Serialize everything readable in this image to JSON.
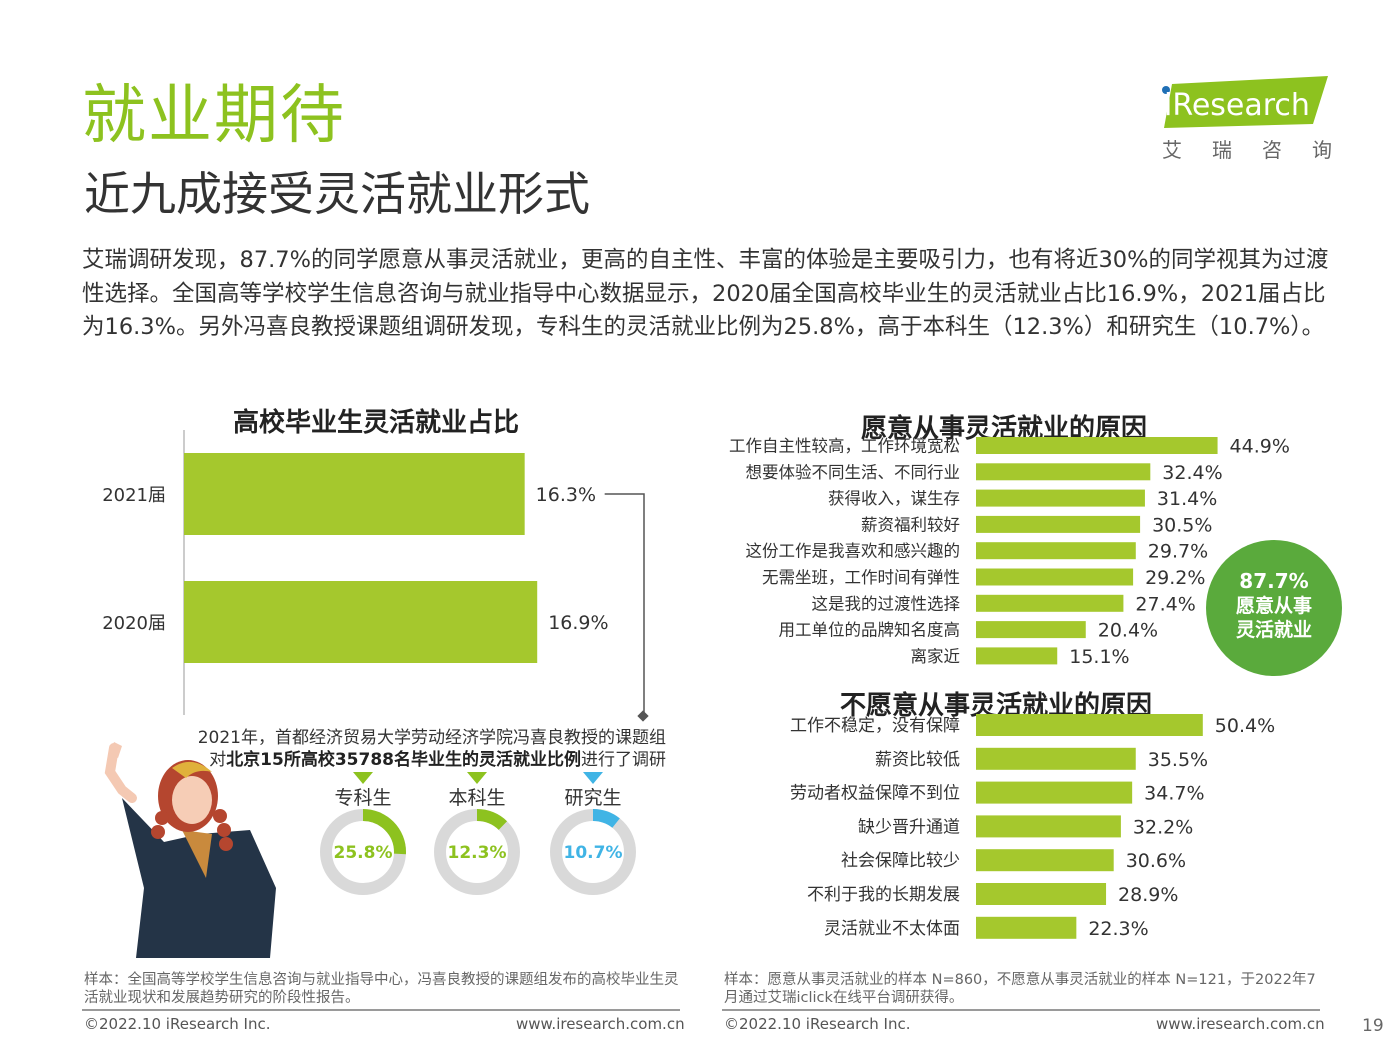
{
  "page": {
    "title": "就业期待",
    "subtitle": "近九成接受灵活就业形式",
    "intro": "艾瑞调研发现，87.7%的同学愿意从事灵活就业，更高的自主性、丰富的体验是主要吸引力，也有将近30%的同学视其为过渡性选择。全国高等学校学生信息咨询与就业指导中心数据显示，2020届全国高校毕业生的灵活就业占比16.9%，2021届占比为16.3%。另外冯喜良教授课题组调研发现，专科生的灵活就业比例为25.8%，高于本科生（12.3%）和研究生（10.7%）。",
    "page_number": "19"
  },
  "logo": {
    "word": "iResearch",
    "chinese": "艾瑞咨询"
  },
  "survey_note": {
    "line1": "2021年，首都经济贸易大学劳动经济学院冯喜良教授的课题组",
    "prefix": "对",
    "bold": "北京15所高校35788名毕业生的灵活就业比例",
    "suffix": "进行了调研"
  },
  "highlight_circle": {
    "value": "87.7%",
    "line1": "愿意从事",
    "line2": "灵活就业"
  },
  "notes": {
    "left": "样本：全国高等学校学生信息咨询与就业指导中心，冯喜良教授的课题组发布的高校毕业生灵活就业现状和发展趋势研究的阶段性报告。",
    "right": "样本：愿意从事灵活就业的样本 N=860，不愿意从事灵活就业的样本 N=121，于2022年7月通过艾瑞iclick在线平台调研获得。"
  },
  "footer": {
    "copyright": "©2022.10 iResearch Inc.",
    "url": "www.iresearch.com.cn"
  },
  "colors": {
    "accent": "#8dc21f",
    "bar": "#a5c82d",
    "donut_track": "#d9d9d9",
    "blue": "#40b4e5",
    "circle": "#5aaa3c",
    "text": "#333333"
  },
  "chart_data": [
    {
      "id": "graduates",
      "type": "bar",
      "orientation": "horizontal",
      "title": "高校毕业生灵活就业占比",
      "categories": [
        "2021届",
        "2020届"
      ],
      "values": [
        16.3,
        16.9
      ],
      "labels": [
        "16.3%",
        "16.9%"
      ],
      "unit": "%"
    },
    {
      "id": "degree",
      "type": "pie",
      "variant": "donut",
      "categories": [
        "专科生",
        "本科生",
        "研究生"
      ],
      "values": [
        25.8,
        12.3,
        10.7
      ],
      "labels": [
        "25.8%",
        "12.3%",
        "10.7%"
      ],
      "colors": [
        "#8dc21f",
        "#8dc21f",
        "#40b4e5"
      ],
      "unit": "%"
    },
    {
      "id": "willing",
      "type": "bar",
      "orientation": "horizontal",
      "title": "愿意从事灵活就业的原因",
      "categories": [
        "工作自主性较高，工作环境宽松",
        "想要体验不同生活、不同行业",
        "获得收入，谋生存",
        "薪资福利较好",
        "这份工作是我喜欢和感兴趣的",
        "无需坐班，工作时间有弹性",
        "这是我的过渡性选择",
        "用工单位的品牌知名度高",
        "离家近"
      ],
      "values": [
        44.9,
        32.4,
        31.4,
        30.5,
        29.7,
        29.2,
        27.4,
        20.4,
        15.1
      ],
      "labels": [
        "44.9%",
        "32.4%",
        "31.4%",
        "30.5%",
        "29.7%",
        "29.2%",
        "27.4%",
        "20.4%",
        "15.1%"
      ],
      "unit": "%"
    },
    {
      "id": "unwilling",
      "type": "bar",
      "orientation": "horizontal",
      "title": "不愿意从事灵活就业的原因",
      "categories": [
        "工作不稳定，没有保障",
        "薪资比较低",
        "劳动者权益保障不到位",
        "缺少晋升通道",
        "社会保障比较少",
        "不利于我的长期发展",
        "灵活就业不太体面"
      ],
      "values": [
        50.4,
        35.5,
        34.7,
        32.2,
        30.6,
        28.9,
        22.3
      ],
      "labels": [
        "50.4%",
        "35.5%",
        "34.7%",
        "32.2%",
        "30.6%",
        "28.9%",
        "22.3%"
      ],
      "unit": "%"
    }
  ]
}
